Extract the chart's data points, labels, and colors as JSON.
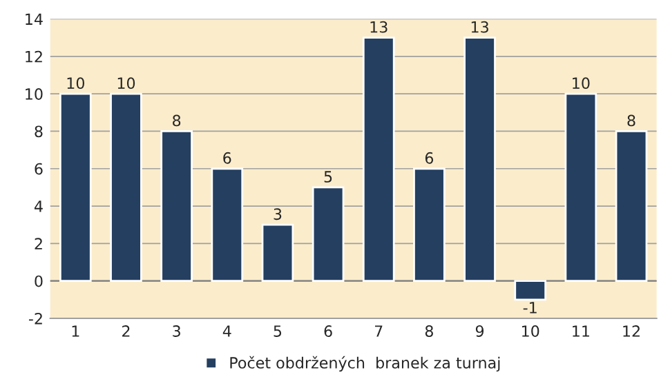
{
  "chart_data": {
    "type": "bar",
    "categories": [
      "1",
      "2",
      "3",
      "4",
      "5",
      "6",
      "7",
      "8",
      "9",
      "10",
      "11",
      "12"
    ],
    "series": [
      {
        "name": "Počet obdržených  branek za turnaj",
        "color": "#243f60",
        "values": [
          10,
          10,
          8,
          6,
          3,
          5,
          13,
          6,
          13,
          -1,
          10,
          8
        ]
      }
    ],
    "ylim": [
      -2,
      14
    ],
    "yticks": [
      -2,
      0,
      2,
      4,
      6,
      8,
      10,
      12,
      14
    ],
    "grid": "y",
    "legend": "bottom",
    "data_labels": true
  }
}
